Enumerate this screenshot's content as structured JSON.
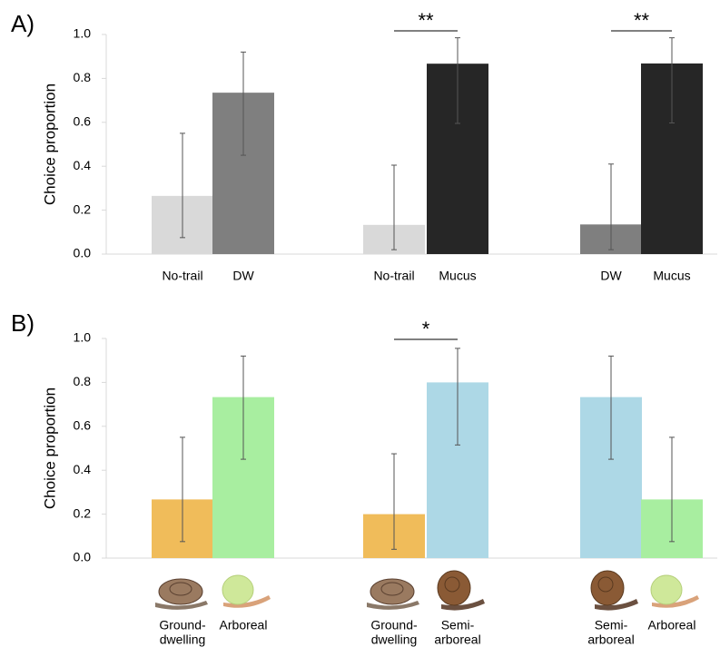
{
  "chart_data": [
    {
      "type": "bar",
      "panel_label": "A)",
      "y_label": "Choice proportion",
      "categories": [
        [
          "No-trail"
        ],
        [
          "DW"
        ],
        [
          "No-trail"
        ],
        [
          "Mucus"
        ],
        [
          "DW"
        ],
        [
          "Mucus"
        ]
      ],
      "values": [
        0.265,
        0.735,
        0.133,
        0.867,
        0.135,
        0.868
      ],
      "ci_low": [
        0.075,
        0.45,
        0.02,
        0.595,
        0.02,
        0.597
      ],
      "ci_high": [
        0.55,
        0.92,
        0.405,
        0.985,
        0.41,
        0.985
      ],
      "colors": [
        "#d9d9d9",
        "#7f7f7f",
        "#d9d9d9",
        "#262626",
        "#7f7f7f",
        "#262626"
      ],
      "annotations": [
        "**",
        "**"
      ],
      "ylim": [
        0,
        1
      ],
      "yticks": [
        {
          "value": 0,
          "label": "0.0"
        },
        {
          "value": 0.2,
          "label": "0.2"
        },
        {
          "value": 0.4,
          "label": "0.4"
        },
        {
          "value": 0.6,
          "label": "0.6"
        },
        {
          "value": 0.8,
          "label": "0.8"
        },
        {
          "value": 1,
          "label": "1.0"
        }
      ]
    },
    {
      "type": "bar",
      "panel_label": "B)",
      "y_label": "Choice proportion",
      "categories": [
        [
          "Ground-",
          "dwelling"
        ],
        [
          "Arboreal"
        ],
        [
          "Ground-",
          "dwelling"
        ],
        [
          "Semi-",
          "arboreal"
        ],
        [
          "Semi-",
          "arboreal"
        ],
        [
          "Arboreal"
        ]
      ],
      "values": [
        0.267,
        0.733,
        0.2,
        0.8,
        0.733,
        0.267
      ],
      "ci_low": [
        0.075,
        0.45,
        0.04,
        0.515,
        0.45,
        0.075
      ],
      "ci_high": [
        0.55,
        0.92,
        0.475,
        0.955,
        0.92,
        0.55
      ],
      "colors": [
        "#f0bc5a",
        "#a8eea0",
        "#f0bc5a",
        "#add8e6",
        "#add8e6",
        "#a8eea0"
      ],
      "annotations": [
        "*"
      ],
      "ylim": [
        0,
        1
      ],
      "yticks": [
        {
          "value": 0,
          "label": "0.0"
        },
        {
          "value": 0.2,
          "label": "0.2"
        },
        {
          "value": 0.4,
          "label": "0.4"
        },
        {
          "value": 0.6,
          "label": "0.6"
        },
        {
          "value": 0.8,
          "label": "0.8"
        },
        {
          "value": 1,
          "label": "1.0"
        }
      ]
    }
  ]
}
